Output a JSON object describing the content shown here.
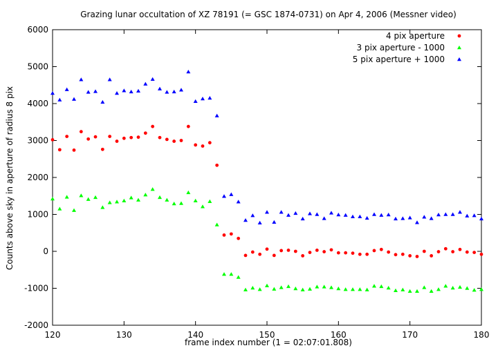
{
  "chart_data": {
    "type": "scatter",
    "title": "Grazing lunar occultation of XZ 78191 (= GSC 1874-0731) on Apr 4, 2006 (Messner video)",
    "xlabel": "frame index number (1 = 02:07:01.808)",
    "ylabel": "Counts above sky in aperture of radius 8 pix",
    "xlim": [
      120,
      180
    ],
    "ylim": [
      -2000,
      6000
    ],
    "x_ticks": [
      120,
      130,
      140,
      150,
      160,
      170,
      180
    ],
    "y_ticks": [
      -2000,
      -1000,
      0,
      1000,
      2000,
      3000,
      4000,
      5000,
      6000
    ],
    "grid": false,
    "legend_position": "top-right",
    "x": [
      120,
      121,
      122,
      123,
      124,
      125,
      126,
      127,
      128,
      129,
      130,
      131,
      132,
      133,
      134,
      135,
      136,
      137,
      138,
      139,
      140,
      141,
      142,
      143,
      144,
      145,
      146,
      147,
      148,
      149,
      150,
      151,
      152,
      153,
      154,
      155,
      156,
      157,
      158,
      159,
      160,
      161,
      162,
      163,
      164,
      165,
      166,
      167,
      168,
      169,
      170,
      171,
      172,
      173,
      174,
      175,
      176,
      177,
      178,
      179,
      180
    ],
    "series": [
      {
        "name": "4 pix aperture",
        "color": "#ff0000",
        "marker": "circle",
        "values": [
          3020,
          2750,
          3110,
          2740,
          3240,
          3040,
          3100,
          2760,
          3110,
          2980,
          3060,
          3080,
          3090,
          3200,
          3380,
          3080,
          3030,
          2980,
          3000,
          3380,
          2880,
          2850,
          2940,
          2330,
          440,
          470,
          350,
          -110,
          -20,
          -80,
          60,
          -110,
          20,
          30,
          0,
          -120,
          -30,
          30,
          -10,
          40,
          -40,
          -40,
          -50,
          -80,
          -80,
          20,
          50,
          -20,
          -90,
          -80,
          -120,
          -140,
          0,
          -120,
          -10,
          70,
          -10,
          50,
          -20,
          -30,
          -80
        ]
      },
      {
        "name": "3 pix aperture - 1000",
        "color": "#00ff00",
        "marker": "triangle-up",
        "values": [
          1420,
          1150,
          1470,
          1110,
          1510,
          1410,
          1460,
          1190,
          1320,
          1340,
          1370,
          1450,
          1390,
          1530,
          1680,
          1460,
          1390,
          1290,
          1300,
          1590,
          1370,
          1210,
          1350,
          720,
          -620,
          -620,
          -700,
          -1040,
          -990,
          -1030,
          -930,
          -1020,
          -980,
          -950,
          -1010,
          -1040,
          -1020,
          -960,
          -960,
          -980,
          -1010,
          -1030,
          -1030,
          -1030,
          -1040,
          -940,
          -950,
          -990,
          -1060,
          -1040,
          -1080,
          -1080,
          -980,
          -1080,
          -1030,
          -940,
          -990,
          -970,
          -1000,
          -1050,
          -1030
        ]
      },
      {
        "name": "5 pix aperture + 1000",
        "color": "#0000ff",
        "marker": "triangle-up",
        "values": [
          4280,
          4100,
          4380,
          4120,
          4650,
          4310,
          4330,
          4040,
          4650,
          4280,
          4350,
          4320,
          4340,
          4530,
          4660,
          4400,
          4310,
          4320,
          4370,
          4860,
          4060,
          4130,
          4150,
          3670,
          1490,
          1540,
          1340,
          840,
          970,
          770,
          1060,
          790,
          1060,
          980,
          1030,
          880,
          1020,
          1000,
          890,
          1040,
          990,
          980,
          940,
          940,
          900,
          1000,
          980,
          990,
          880,
          890,
          910,
          780,
          930,
          890,
          990,
          1000,
          1000,
          1060,
          960,
          970,
          880
        ]
      }
    ]
  }
}
